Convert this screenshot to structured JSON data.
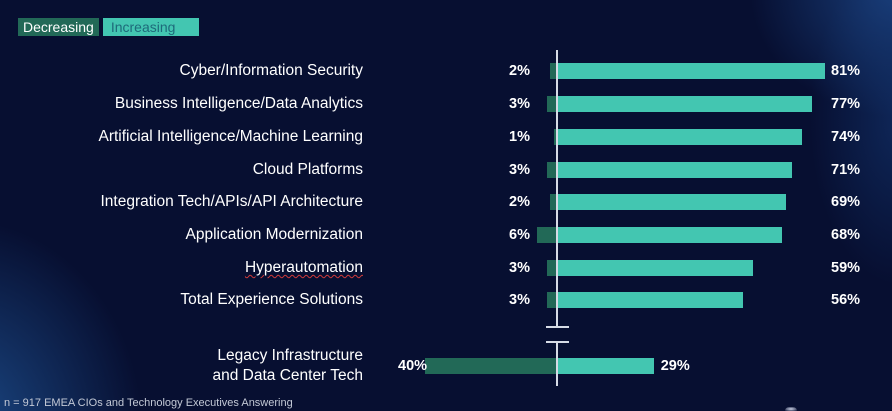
{
  "legend": {
    "decreasing": "Decreasing",
    "increasing": "Increasing"
  },
  "colors": {
    "background": "#070f31",
    "decreasing": "#226957",
    "increasing": "#43c6b1",
    "axis": "#d6dbe6",
    "text": "#ffffff"
  },
  "footnote": "n = 917 EMEA CIOs and Technology Executives Answering",
  "chart_data": {
    "type": "bar",
    "orientation": "horizontal-diverging",
    "title": "",
    "xlabel": "",
    "ylabel": "",
    "unit": "%",
    "legend": [
      "Decreasing",
      "Increasing"
    ],
    "legend_position": "top-left",
    "grid": false,
    "axis_break_before_last": true,
    "categories": [
      "Cyber/Information Security",
      "Business Intelligence/Data Analytics",
      "Artificial Intelligence/Machine Learning",
      "Cloud Platforms",
      "Integration Tech/APIs/API Architecture",
      "Application Modernization",
      "Hyperautomation",
      "Total Experience Solutions",
      "Legacy Infrastructure and Data Center Tech"
    ],
    "category_lines": [
      [
        "Cyber/Information Security"
      ],
      [
        "Business Intelligence/Data Analytics"
      ],
      [
        "Artificial Intelligence/Machine Learning"
      ],
      [
        "Cloud Platforms"
      ],
      [
        "Integration Tech/APIs/API Architecture"
      ],
      [
        "Application Modernization"
      ],
      [
        "Hyperautomation"
      ],
      [
        "Total Experience Solutions"
      ],
      [
        "Legacy Infrastructure",
        "and Data Center Tech"
      ]
    ],
    "series": [
      {
        "name": "Decreasing",
        "values": [
          2,
          3,
          1,
          3,
          2,
          6,
          3,
          3,
          40
        ]
      },
      {
        "name": "Increasing",
        "values": [
          81,
          77,
          74,
          71,
          69,
          68,
          59,
          56,
          29
        ]
      }
    ],
    "decreasing_labels": [
      "2%",
      "3%",
      "1%",
      "3%",
      "2%",
      "6%",
      "3%",
      "3%",
      "40%"
    ],
    "increasing_labels": [
      "81%",
      "77%",
      "74%",
      "71%",
      "69%",
      "68%",
      "59%",
      "56%",
      "29%"
    ]
  }
}
